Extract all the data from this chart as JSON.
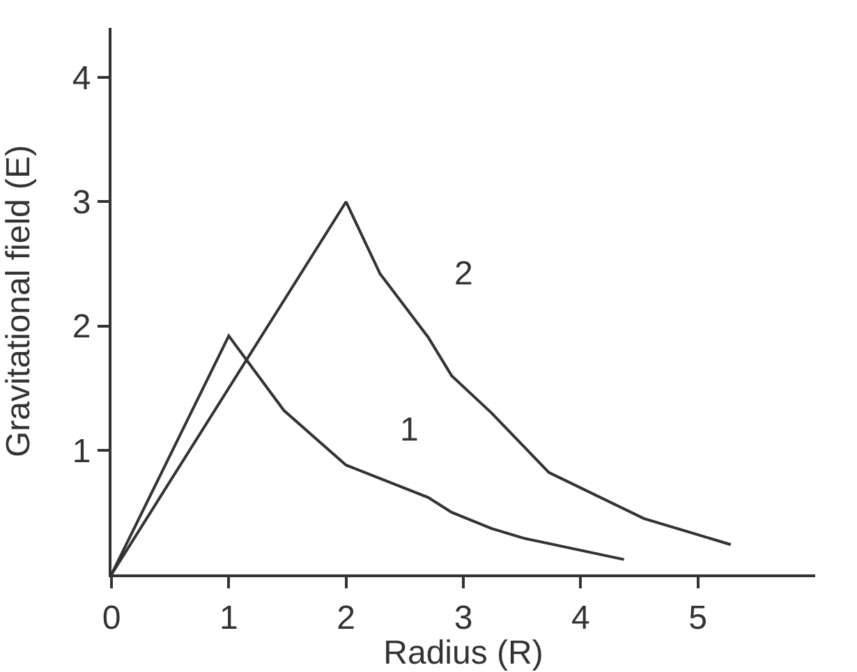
{
  "chart_data": {
    "type": "line",
    "xlabel": "Radius (R)",
    "ylabel": "Gravitational field (E)",
    "xlim": [
      0,
      6
    ],
    "ylim": [
      0,
      4.4
    ],
    "xticks": [
      0,
      1,
      2,
      3,
      4,
      5
    ],
    "yticks": [
      1,
      2,
      3,
      4
    ],
    "grid": false,
    "legend": false,
    "marker": "none",
    "line_style": "solid",
    "series": [
      {
        "name": "1",
        "color": "#333333",
        "x": [
          0,
          1,
          1.47,
          2,
          2.7,
          2.9,
          3.24,
          3.52,
          4.37
        ],
        "values": [
          0,
          1.92,
          1.32,
          0.88,
          0.62,
          0.5,
          0.37,
          0.29,
          0.12
        ]
      },
      {
        "name": "2",
        "color": "#333333",
        "x": [
          0,
          2,
          2.29,
          2.7,
          2.9,
          3.24,
          3.73,
          4.54,
          5.28
        ],
        "values": [
          0,
          3,
          2.42,
          1.91,
          1.6,
          1.3,
          0.82,
          0.45,
          0.24
        ]
      }
    ]
  }
}
